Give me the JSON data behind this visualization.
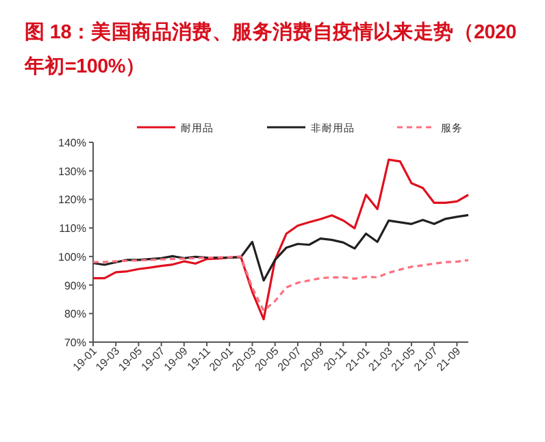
{
  "chart_data": {
    "type": "line",
    "title": "图 18：美国商品消费、服务消费自疫情以来走势（2020 年初=100%）",
    "categories": [
      "19-01",
      null,
      "19-03",
      null,
      "19-05",
      null,
      "19-07",
      null,
      "19-09",
      null,
      "19-11",
      null,
      "20-01",
      null,
      "20-03",
      null,
      "20-05",
      null,
      "20-07",
      null,
      "20-09",
      null,
      "20-11",
      null,
      "21-01",
      null,
      "21-03",
      null,
      "21-05",
      null,
      "21-07",
      null,
      "21-09",
      null
    ],
    "series": [
      {
        "name": "耐用品",
        "color": "#e0101e",
        "line_style": "solid",
        "values": [
          92.4,
          92.4,
          94.5,
          94.8,
          95.6,
          96.1,
          96.7,
          97.2,
          98.3,
          97.5,
          99.1,
          99.3,
          99.6,
          99.8,
          87.6,
          78.0,
          98.8,
          108.0,
          110.8,
          112.0,
          113.1,
          114.4,
          112.6,
          109.9,
          121.6,
          116.6,
          133.9,
          133.3,
          125.7,
          124.0,
          118.8,
          118.8,
          119.3,
          121.6
        ]
      },
      {
        "name": "非耐用品",
        "color": "#231f20",
        "line_style": "solid",
        "values": [
          97.7,
          97.1,
          98.0,
          98.8,
          98.8,
          99.1,
          99.4,
          100.1,
          99.4,
          99.9,
          99.6,
          99.6,
          99.6,
          99.8,
          105.1,
          91.6,
          98.8,
          103.1,
          104.4,
          104.1,
          106.3,
          105.8,
          104.9,
          102.8,
          108.0,
          105.1,
          112.6,
          112.0,
          111.4,
          112.8,
          111.4,
          113.2,
          113.9,
          114.5
        ]
      },
      {
        "name": "服务",
        "color": "#ff6f7f",
        "line_style": "dashed",
        "values": [
          98.0,
          98.1,
          98.3,
          98.5,
          98.6,
          98.8,
          99.0,
          99.1,
          99.3,
          99.4,
          99.6,
          99.7,
          99.8,
          100.0,
          89.0,
          81.0,
          84.4,
          89.2,
          90.8,
          91.6,
          92.4,
          92.7,
          92.7,
          92.2,
          92.9,
          92.7,
          94.3,
          95.4,
          96.4,
          96.9,
          97.5,
          98.0,
          98.2,
          98.7
        ]
      }
    ],
    "ylim": [
      70,
      140
    ],
    "yticks": [
      {
        "value": 70,
        "label": "70%"
      },
      {
        "value": 80,
        "label": "80%"
      },
      {
        "value": 90,
        "label": "90%"
      },
      {
        "value": 100,
        "label": "100%"
      },
      {
        "value": 110,
        "label": "110%"
      },
      {
        "value": 120,
        "label": "120%"
      },
      {
        "value": 130,
        "label": "130%"
      },
      {
        "value": 140,
        "label": "140%"
      }
    ],
    "grid": false,
    "legend": "top",
    "marker": "none"
  }
}
